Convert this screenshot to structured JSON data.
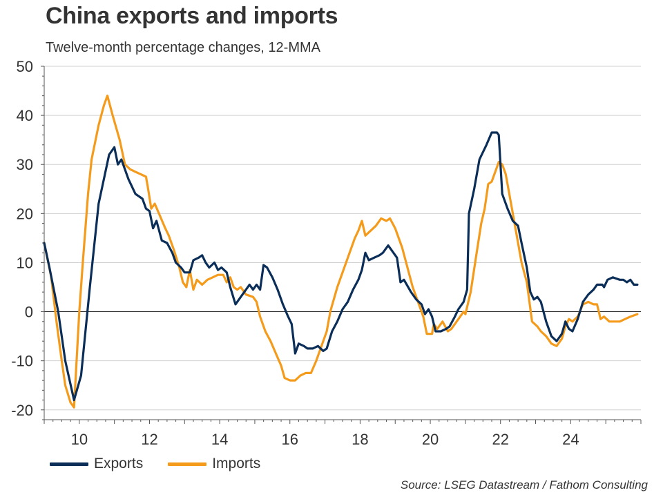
{
  "title": "China exports and imports",
  "subtitle": "Twelve-month percentage changes, 12-MMA",
  "source": "Source: LSEG Datastream / Fathom Consulting",
  "legend": {
    "exports": "Exports",
    "imports": "Imports"
  },
  "chart_data": {
    "type": "line",
    "title": "China exports and imports",
    "subtitle": "Twelve-month percentage changes, 12-MMA",
    "x_unit": "year",
    "xlim": [
      2009.0,
      2026.0
    ],
    "ylim": [
      -22,
      50
    ],
    "yticks": [
      50,
      40,
      30,
      20,
      10,
      0,
      -10,
      -20
    ],
    "xticks": [
      2010,
      2012,
      2014,
      2016,
      2018,
      2020,
      2022,
      2024
    ],
    "xtick_labels": [
      "10",
      "12",
      "14",
      "16",
      "18",
      "20",
      "22",
      "24"
    ],
    "grid": "horizontal",
    "legend_position": "bottom-left",
    "series": [
      {
        "name": "Exports",
        "color": "#0b2e59",
        "points": [
          [
            2009.0,
            14
          ],
          [
            2009.15,
            9
          ],
          [
            2009.4,
            0
          ],
          [
            2009.6,
            -10
          ],
          [
            2009.85,
            -18
          ],
          [
            2010.05,
            -13
          ],
          [
            2010.3,
            5
          ],
          [
            2010.55,
            22
          ],
          [
            2010.85,
            32
          ],
          [
            2011.0,
            33.5
          ],
          [
            2011.1,
            30
          ],
          [
            2011.2,
            31
          ],
          [
            2011.4,
            27
          ],
          [
            2011.6,
            24
          ],
          [
            2011.8,
            23
          ],
          [
            2011.9,
            21
          ],
          [
            2012.0,
            20.5
          ],
          [
            2012.1,
            17
          ],
          [
            2012.2,
            18.5
          ],
          [
            2012.35,
            14.5
          ],
          [
            2012.5,
            14
          ],
          [
            2012.65,
            12
          ],
          [
            2012.75,
            10
          ],
          [
            2012.9,
            9
          ],
          [
            2013.0,
            8
          ],
          [
            2013.15,
            8
          ],
          [
            2013.25,
            10.5
          ],
          [
            2013.4,
            11
          ],
          [
            2013.5,
            11.5
          ],
          [
            2013.6,
            10
          ],
          [
            2013.7,
            9
          ],
          [
            2013.85,
            10
          ],
          [
            2013.95,
            8.5
          ],
          [
            2014.05,
            9
          ],
          [
            2014.2,
            8
          ],
          [
            2014.3,
            5
          ],
          [
            2014.45,
            1.5
          ],
          [
            2014.6,
            3
          ],
          [
            2014.75,
            4.5
          ],
          [
            2014.85,
            5.5
          ],
          [
            2014.95,
            4.5
          ],
          [
            2015.05,
            5.5
          ],
          [
            2015.15,
            4.5
          ],
          [
            2015.25,
            9.5
          ],
          [
            2015.35,
            9
          ],
          [
            2015.5,
            7
          ],
          [
            2015.65,
            4.5
          ],
          [
            2015.8,
            1.5
          ],
          [
            2015.95,
            -1
          ],
          [
            2016.05,
            -2.5
          ],
          [
            2016.15,
            -8.5
          ],
          [
            2016.25,
            -6.5
          ],
          [
            2016.4,
            -7
          ],
          [
            2016.5,
            -7.5
          ],
          [
            2016.65,
            -7.5
          ],
          [
            2016.8,
            -7
          ],
          [
            2016.95,
            -8
          ],
          [
            2017.05,
            -7.5
          ],
          [
            2017.2,
            -4
          ],
          [
            2017.35,
            -2
          ],
          [
            2017.5,
            0.5
          ],
          [
            2017.65,
            2
          ],
          [
            2017.8,
            4.5
          ],
          [
            2017.95,
            6.5
          ],
          [
            2018.05,
            8.5
          ],
          [
            2018.15,
            12
          ],
          [
            2018.25,
            10.5
          ],
          [
            2018.4,
            11
          ],
          [
            2018.55,
            11.5
          ],
          [
            2018.65,
            12
          ],
          [
            2018.8,
            13.5
          ],
          [
            2018.95,
            12
          ],
          [
            2019.05,
            11
          ],
          [
            2019.15,
            6
          ],
          [
            2019.25,
            6.5
          ],
          [
            2019.45,
            4
          ],
          [
            2019.6,
            2.5
          ],
          [
            2019.75,
            1.5
          ],
          [
            2019.85,
            -0.5
          ],
          [
            2019.95,
            0.5
          ],
          [
            2020.05,
            -1
          ],
          [
            2020.15,
            -4
          ],
          [
            2020.3,
            -4
          ],
          [
            2020.45,
            -3.5
          ],
          [
            2020.55,
            -3
          ],
          [
            2020.7,
            -1
          ],
          [
            2020.8,
            0.5
          ],
          [
            2020.95,
            2
          ],
          [
            2021.05,
            4.5
          ],
          [
            2021.1,
            20
          ],
          [
            2021.25,
            25
          ],
          [
            2021.4,
            31
          ],
          [
            2021.6,
            34
          ],
          [
            2021.75,
            36.5
          ],
          [
            2021.9,
            36.5
          ],
          [
            2021.95,
            36
          ],
          [
            2022.05,
            24
          ],
          [
            2022.2,
            21
          ],
          [
            2022.35,
            18.5
          ],
          [
            2022.5,
            17.5
          ],
          [
            2022.6,
            14
          ],
          [
            2022.75,
            9
          ],
          [
            2022.85,
            4
          ],
          [
            2022.95,
            2.5
          ],
          [
            2023.05,
            3
          ],
          [
            2023.15,
            2
          ],
          [
            2023.3,
            -2
          ],
          [
            2023.45,
            -5
          ],
          [
            2023.6,
            -6
          ],
          [
            2023.75,
            -4.5
          ],
          [
            2023.85,
            -2
          ],
          [
            2023.95,
            -3.5
          ],
          [
            2024.05,
            -4
          ],
          [
            2024.2,
            -1.5
          ],
          [
            2024.35,
            2
          ],
          [
            2024.5,
            3.5
          ],
          [
            2024.65,
            4.5
          ],
          [
            2024.75,
            5.5
          ],
          [
            2024.9,
            5.5
          ],
          [
            2024.95,
            5
          ],
          [
            2025.05,
            6.5
          ],
          [
            2025.2,
            7
          ],
          [
            2025.4,
            6.5
          ],
          [
            2025.5,
            6.5
          ],
          [
            2025.6,
            6
          ],
          [
            2025.7,
            6.5
          ],
          [
            2025.8,
            5.5
          ],
          [
            2025.9,
            5.5
          ]
        ]
      },
      {
        "name": "Imports",
        "color": "#f59b1c",
        "points": [
          [
            2009.0,
            14
          ],
          [
            2009.2,
            7
          ],
          [
            2009.35,
            -2
          ],
          [
            2009.5,
            -10
          ],
          [
            2009.6,
            -15
          ],
          [
            2009.75,
            -18.5
          ],
          [
            2009.85,
            -19.5
          ],
          [
            2010.0,
            0
          ],
          [
            2010.1,
            10
          ],
          [
            2010.25,
            24
          ],
          [
            2010.35,
            31
          ],
          [
            2010.55,
            38
          ],
          [
            2010.7,
            42
          ],
          [
            2010.8,
            44
          ],
          [
            2010.95,
            40
          ],
          [
            2011.15,
            35
          ],
          [
            2011.3,
            30
          ],
          [
            2011.45,
            29
          ],
          [
            2011.6,
            28.5
          ],
          [
            2011.75,
            28
          ],
          [
            2011.9,
            27.5
          ],
          [
            2011.95,
            25.5
          ],
          [
            2012.05,
            21
          ],
          [
            2012.15,
            22
          ],
          [
            2012.3,
            19.5
          ],
          [
            2012.45,
            17
          ],
          [
            2012.55,
            15.5
          ],
          [
            2012.7,
            12.5
          ],
          [
            2012.85,
            9
          ],
          [
            2012.95,
            6
          ],
          [
            2013.05,
            5
          ],
          [
            2013.15,
            8.5
          ],
          [
            2013.25,
            4.5
          ],
          [
            2013.35,
            6.5
          ],
          [
            2013.5,
            5.5
          ],
          [
            2013.65,
            6.5
          ],
          [
            2013.8,
            7
          ],
          [
            2013.95,
            7.5
          ],
          [
            2014.1,
            7.5
          ],
          [
            2014.2,
            6
          ],
          [
            2014.3,
            7
          ],
          [
            2014.4,
            5
          ],
          [
            2014.5,
            4.5
          ],
          [
            2014.6,
            5
          ],
          [
            2014.75,
            3.5
          ],
          [
            2014.95,
            3
          ],
          [
            2015.05,
            2
          ],
          [
            2015.15,
            -1
          ],
          [
            2015.3,
            -4
          ],
          [
            2015.45,
            -6
          ],
          [
            2015.6,
            -8.5
          ],
          [
            2015.75,
            -11
          ],
          [
            2015.85,
            -13.5
          ],
          [
            2016.0,
            -14
          ],
          [
            2016.15,
            -14
          ],
          [
            2016.3,
            -13
          ],
          [
            2016.45,
            -12.5
          ],
          [
            2016.6,
            -12.5
          ],
          [
            2016.75,
            -10
          ],
          [
            2016.9,
            -7
          ],
          [
            2017.05,
            -4
          ],
          [
            2017.15,
            0
          ],
          [
            2017.35,
            5
          ],
          [
            2017.5,
            8
          ],
          [
            2017.7,
            12
          ],
          [
            2017.85,
            15
          ],
          [
            2017.95,
            16.5
          ],
          [
            2018.05,
            18.5
          ],
          [
            2018.15,
            15.5
          ],
          [
            2018.3,
            16.5
          ],
          [
            2018.45,
            17.5
          ],
          [
            2018.6,
            19
          ],
          [
            2018.75,
            18.5
          ],
          [
            2018.85,
            19
          ],
          [
            2019.0,
            17
          ],
          [
            2019.2,
            13
          ],
          [
            2019.35,
            9
          ],
          [
            2019.5,
            5
          ],
          [
            2019.65,
            2
          ],
          [
            2019.8,
            -1
          ],
          [
            2019.9,
            -4.5
          ],
          [
            2020.05,
            -4.5
          ],
          [
            2020.1,
            -2.5
          ],
          [
            2020.2,
            -3.5
          ],
          [
            2020.35,
            -2
          ],
          [
            2020.5,
            -4
          ],
          [
            2020.6,
            -3.5
          ],
          [
            2020.75,
            -2
          ],
          [
            2020.85,
            -1
          ],
          [
            2020.95,
            0
          ],
          [
            2021.0,
            -0.5
          ],
          [
            2021.15,
            4
          ],
          [
            2021.3,
            11
          ],
          [
            2021.45,
            18
          ],
          [
            2021.55,
            21
          ],
          [
            2021.65,
            26
          ],
          [
            2021.75,
            26.5
          ],
          [
            2021.85,
            28.5
          ],
          [
            2021.95,
            30.5
          ],
          [
            2022.05,
            30
          ],
          [
            2022.15,
            28
          ],
          [
            2022.3,
            22
          ],
          [
            2022.45,
            16
          ],
          [
            2022.6,
            10
          ],
          [
            2022.75,
            6
          ],
          [
            2022.9,
            -2
          ],
          [
            2023.05,
            -3
          ],
          [
            2023.15,
            -4
          ],
          [
            2023.3,
            -5
          ],
          [
            2023.45,
            -6.5
          ],
          [
            2023.6,
            -7
          ],
          [
            2023.75,
            -5.5
          ],
          [
            2023.85,
            -3
          ],
          [
            2023.95,
            -1.5
          ],
          [
            2024.05,
            -2
          ],
          [
            2024.2,
            -1
          ],
          [
            2024.35,
            1.5
          ],
          [
            2024.5,
            2
          ],
          [
            2024.65,
            1.5
          ],
          [
            2024.75,
            1.5
          ],
          [
            2024.85,
            -1.5
          ],
          [
            2024.95,
            -1
          ],
          [
            2025.1,
            -2
          ],
          [
            2025.25,
            -2
          ],
          [
            2025.4,
            -2
          ],
          [
            2025.55,
            -1.5
          ],
          [
            2025.7,
            -1
          ],
          [
            2025.9,
            -0.5
          ]
        ]
      }
    ]
  }
}
